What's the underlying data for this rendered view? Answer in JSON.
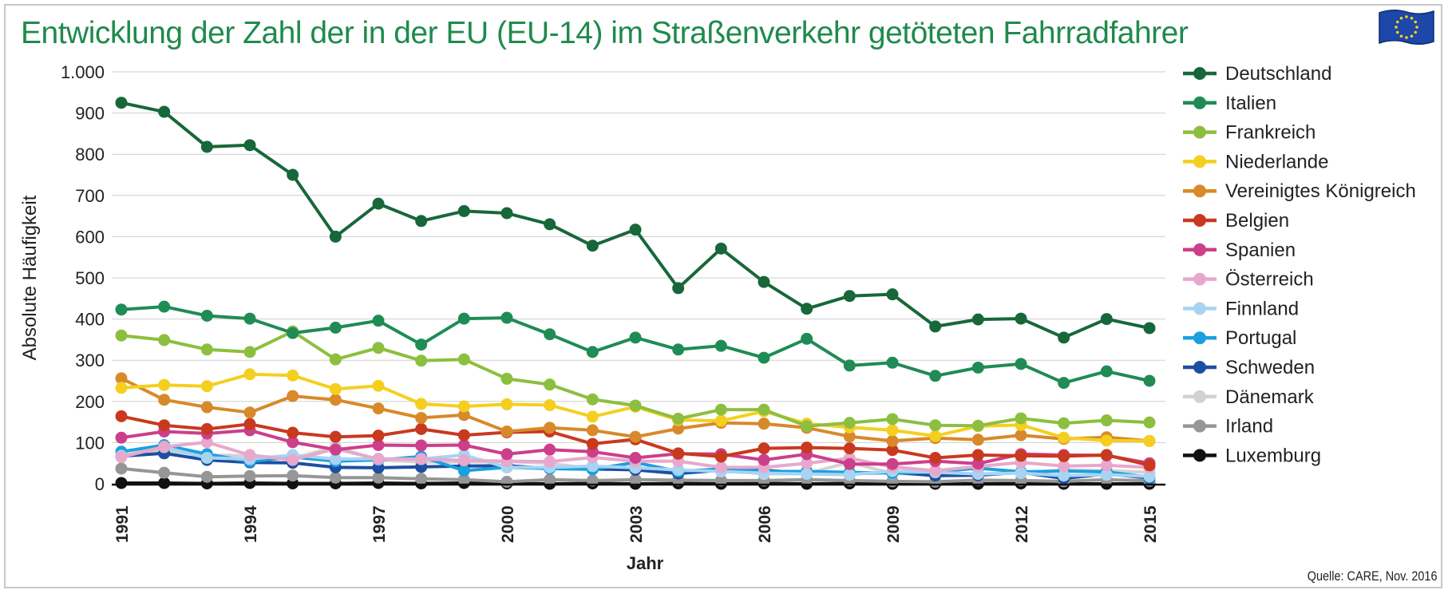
{
  "title": "Entwicklung der Zahl der in der EU (EU-14) im Straßenverkehr getöteten Fahrradfahrer",
  "source": "Quelle: CARE, Nov. 2016",
  "chart_data": {
    "type": "line",
    "title": "Entwicklung der Zahl der in der EU (EU-14) im Straßenverkehr getöteten Fahrradfahrer",
    "xlabel": "Jahr",
    "ylabel": "Absolute Häufigkeit",
    "ylim": [
      0,
      1000
    ],
    "yticks": [
      0,
      100,
      200,
      300,
      400,
      500,
      600,
      700,
      800,
      900,
      1000
    ],
    "ytick_labels": [
      "0",
      "100",
      "200",
      "300",
      "400",
      "500",
      "600",
      "700",
      "800",
      "900",
      "1.000"
    ],
    "xticks": [
      1991,
      1994,
      1997,
      2000,
      2003,
      2006,
      2009,
      2012,
      2015
    ],
    "xtick_labels": [
      "1991",
      "1994",
      "1997",
      "2000",
      "2003",
      "2006",
      "2009",
      "2012",
      "2015"
    ],
    "grid": true,
    "legend_position": "right",
    "x": [
      1991,
      1992,
      1993,
      1994,
      1995,
      1996,
      1997,
      1998,
      1999,
      2000,
      2001,
      2002,
      2003,
      2004,
      2005,
      2006,
      2007,
      2008,
      2009,
      2010,
      2011,
      2012,
      2013,
      2014,
      2015
    ],
    "series": [
      {
        "name": "Deutschland",
        "color": "#17673a",
        "values": [
          925,
          903,
          818,
          822,
          750,
          600,
          680,
          638,
          662,
          657,
          630,
          578,
          617,
          475,
          571,
          490,
          425,
          456,
          460,
          382,
          399,
          401,
          355,
          400,
          378
        ]
      },
      {
        "name": "Italien",
        "color": "#1f8c55",
        "values": [
          423,
          430,
          408,
          401,
          366,
          379,
          396,
          338,
          401,
          403,
          363,
          320,
          355,
          326,
          335,
          306,
          352,
          287,
          294,
          262,
          282,
          291,
          245,
          273,
          250
        ]
      },
      {
        "name": "Frankreich",
        "color": "#8cbf3f",
        "values": [
          360,
          349,
          326,
          320,
          370,
          302,
          330,
          299,
          302,
          255,
          241,
          205,
          190,
          158,
          180,
          180,
          140,
          148,
          157,
          142,
          141,
          159,
          147,
          154,
          149
        ]
      },
      {
        "name": "Niederlande",
        "color": "#f5cf1f",
        "values": [
          233,
          240,
          237,
          266,
          263,
          230,
          238,
          194,
          188,
          193,
          191,
          163,
          187,
          155,
          153,
          176,
          146,
          137,
          130,
          116,
          140,
          143,
          112,
          105,
          104
        ]
      },
      {
        "name": "Vereinigtes Königreich",
        "color": "#d8892a",
        "values": [
          256,
          204,
          186,
          173,
          213,
          204,
          183,
          160,
          167,
          127,
          136,
          130,
          114,
          134,
          148,
          146,
          136,
          115,
          104,
          111,
          107,
          118,
          109,
          113,
          104
        ]
      },
      {
        "name": "Belgien",
        "color": "#c9391f",
        "values": [
          164,
          142,
          133,
          145,
          124,
          114,
          117,
          133,
          118,
          125,
          127,
          97,
          108,
          74,
          66,
          86,
          88,
          86,
          82,
          63,
          70,
          68,
          67,
          70,
          45
        ]
      },
      {
        "name": "Spanien",
        "color": "#cc3f8a",
        "values": [
          112,
          127,
          122,
          130,
          101,
          83,
          94,
          93,
          94,
          72,
          83,
          78,
          63,
          73,
          72,
          58,
          72,
          48,
          48,
          55,
          49,
          72,
          70,
          69,
          50
        ]
      },
      {
        "name": "Österreich",
        "color": "#e8a8cc",
        "values": [
          65,
          90,
          101,
          70,
          58,
          85,
          60,
          60,
          57,
          55,
          54,
          64,
          55,
          55,
          40,
          40,
          50,
          62,
          41,
          32,
          42,
          52,
          43,
          45,
          40
        ]
      },
      {
        "name": "Finnland",
        "color": "#a8d4f2",
        "values": [
          68,
          89,
          63,
          60,
          70,
          60,
          61,
          60,
          70,
          40,
          40,
          43,
          39,
          34,
          30,
          26,
          24,
          22,
          31,
          28,
          24,
          26,
          20,
          22,
          18
        ]
      },
      {
        "name": "Portugal",
        "color": "#1c9fdf",
        "values": [
          78,
          94,
          72,
          54,
          65,
          55,
          58,
          66,
          32,
          40,
          37,
          35,
          52,
          30,
          36,
          30,
          30,
          28,
          26,
          29,
          38,
          29,
          31,
          29,
          16
        ]
      },
      {
        "name": "Schweden",
        "color": "#1d4fa0",
        "values": [
          67,
          74,
          58,
          52,
          51,
          40,
          39,
          41,
          43,
          44,
          37,
          36,
          34,
          25,
          33,
          33,
          26,
          24,
          28,
          20,
          21,
          28,
          13,
          24,
          14
        ]
      },
      {
        "name": "Dänemark",
        "color": "#d2d2d2",
        "values": [
          69,
          80,
          70,
          68,
          62,
          90,
          58,
          53,
          53,
          54,
          50,
          36,
          40,
          25,
          34,
          24,
          25,
          52,
          25,
          25,
          24,
          26,
          34,
          32,
          28
        ]
      },
      {
        "name": "Irland",
        "color": "#969696",
        "values": [
          37,
          27,
          17,
          19,
          20,
          15,
          15,
          12,
          10,
          5,
          10,
          8,
          10,
          9,
          8,
          8,
          10,
          8,
          6,
          5,
          9,
          8,
          6,
          10,
          7
        ]
      },
      {
        "name": "Luxemburg",
        "color": "#111111",
        "values": [
          2,
          2,
          1,
          2,
          1,
          1,
          2,
          1,
          2,
          1,
          0,
          1,
          0,
          1,
          0,
          1,
          0,
          1,
          0,
          0,
          0,
          1,
          0,
          0,
          0
        ]
      }
    ]
  }
}
